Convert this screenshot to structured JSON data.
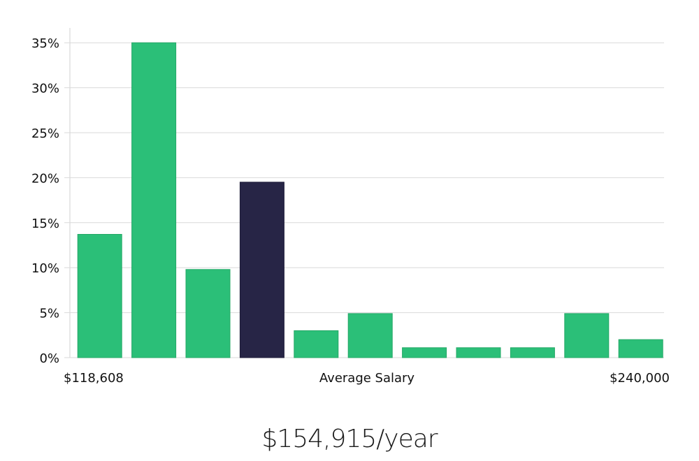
{
  "chart_data": {
    "type": "bar",
    "title": "",
    "ylabel": "",
    "xlabel": "Average Salary",
    "x_min_label": "$118,608",
    "x_max_label": "$240,000",
    "ylim": [
      0,
      36
    ],
    "yticks": [
      0,
      5,
      10,
      15,
      20,
      25,
      30,
      35
    ],
    "ytick_labels": [
      "0%",
      "5%",
      "10%",
      "15%",
      "20%",
      "25%",
      "30%",
      "35%"
    ],
    "values": [
      13.7,
      35.0,
      9.8,
      19.5,
      3.0,
      4.9,
      1.1,
      1.1,
      1.1,
      4.9,
      2.0
    ],
    "highlight_index": 3,
    "grid": true
  },
  "colors": {
    "bar": "#2bbf78",
    "highlight": "#272546",
    "grid": "#d9d9d9"
  },
  "summary": {
    "average_salary": "$154,915/year"
  }
}
